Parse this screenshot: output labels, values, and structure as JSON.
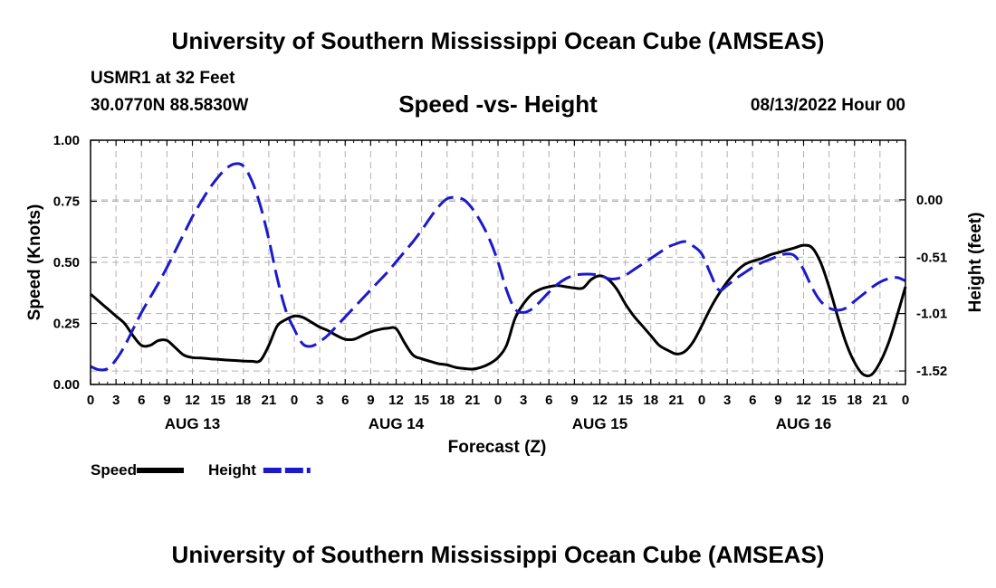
{
  "header": {
    "title": "University of Southern Mississippi Ocean Cube (AMSEAS)",
    "station": "USMR1 at 32 Feet",
    "coordinates": "30.0770N  88.5830W",
    "subtitle": "Speed -vs- Height",
    "date_hour": "08/13/2022 Hour 00"
  },
  "footer": {
    "title": "University of Southern Mississippi Ocean Cube (AMSEAS)"
  },
  "chart_data": {
    "type": "line",
    "title": "Speed -vs- Height",
    "xlabel": "Forecast (Z)",
    "ylabel": "Speed (Knots)",
    "y2label": "Height (feet)",
    "x_unit": "hours since 08/13/2022 00Z",
    "xlim": [
      0,
      96
    ],
    "ylim": [
      0,
      1
    ],
    "y2lim": [
      -1.64,
      0.53
    ],
    "x_ticks": [
      0,
      3,
      6,
      9,
      12,
      15,
      18,
      21,
      24,
      27,
      30,
      33,
      36,
      39,
      42,
      45,
      48,
      51,
      54,
      57,
      60,
      63,
      66,
      69,
      72,
      75,
      78,
      81,
      84,
      87,
      90,
      93,
      96
    ],
    "x_tick_labels": [
      "0",
      "3",
      "6",
      "9",
      "12",
      "15",
      "18",
      "21",
      "0",
      "3",
      "6",
      "9",
      "12",
      "15",
      "18",
      "21",
      "0",
      "3",
      "6",
      "9",
      "12",
      "15",
      "18",
      "21",
      "0",
      "3",
      "6",
      "9",
      "12",
      "15",
      "18",
      "21",
      "0"
    ],
    "day_labels": [
      {
        "x": 12,
        "label": "AUG 13"
      },
      {
        "x": 36,
        "label": "AUG 14"
      },
      {
        "x": 60,
        "label": "AUG 15"
      },
      {
        "x": 84,
        "label": "AUG 16"
      }
    ],
    "y_ticks": [
      0,
      0.25,
      0.5,
      0.75,
      1.0
    ],
    "y_tick_labels": [
      "0.00",
      "0.25",
      "0.50",
      "0.75",
      "1.00"
    ],
    "y2_ticks": [
      0,
      -0.51,
      -1.01,
      -1.52
    ],
    "y2_tick_labels": [
      "0.00",
      "-0.51",
      "-1.01",
      "-1.52"
    ],
    "grid": true,
    "legend": [
      {
        "label": "Speed",
        "color": "#000000",
        "dash": "solid"
      },
      {
        "label": "Height",
        "color": "#1a1acc",
        "dash": "dashed"
      }
    ],
    "series": [
      {
        "name": "Speed",
        "axis": "left",
        "color": "#000000",
        "x": [
          0,
          1,
          2,
          3,
          4,
          5,
          6,
          7,
          8,
          9,
          10,
          11,
          12,
          13,
          14,
          15,
          16,
          17,
          18,
          19,
          20,
          21,
          22,
          23,
          24,
          25,
          26,
          27,
          28,
          29,
          30,
          31,
          32,
          33,
          34,
          35,
          36,
          37,
          38,
          39,
          40,
          41,
          42,
          43,
          44,
          45,
          46,
          47,
          48,
          49,
          50,
          51,
          52,
          53,
          54,
          55,
          56,
          57,
          58,
          59,
          60,
          61,
          62,
          63,
          64,
          65,
          66,
          67,
          68,
          69,
          70,
          71,
          72,
          73,
          74,
          75,
          76,
          77,
          78,
          79,
          80,
          81,
          82,
          83,
          84,
          85,
          86,
          87,
          88,
          89,
          90,
          91,
          92,
          93,
          94,
          95,
          96
        ],
        "values": [
          0.37,
          0.34,
          0.31,
          0.28,
          0.25,
          0.2,
          0.16,
          0.16,
          0.18,
          0.18,
          0.15,
          0.12,
          0.11,
          0.108,
          0.105,
          0.103,
          0.1,
          0.098,
          0.096,
          0.095,
          0.098,
          0.16,
          0.24,
          0.265,
          0.28,
          0.275,
          0.255,
          0.235,
          0.22,
          0.2,
          0.185,
          0.185,
          0.2,
          0.215,
          0.225,
          0.23,
          0.228,
          0.17,
          0.12,
          0.105,
          0.095,
          0.085,
          0.08,
          0.07,
          0.065,
          0.063,
          0.07,
          0.085,
          0.11,
          0.16,
          0.27,
          0.33,
          0.37,
          0.39,
          0.4,
          0.405,
          0.4,
          0.395,
          0.395,
          0.43,
          0.445,
          0.43,
          0.39,
          0.33,
          0.28,
          0.24,
          0.2,
          0.16,
          0.14,
          0.125,
          0.135,
          0.175,
          0.24,
          0.31,
          0.37,
          0.42,
          0.46,
          0.49,
          0.505,
          0.515,
          0.53,
          0.54,
          0.55,
          0.56,
          0.57,
          0.56,
          0.5,
          0.4,
          0.28,
          0.17,
          0.09,
          0.042,
          0.04,
          0.09,
          0.17,
          0.28,
          0.4
        ]
      },
      {
        "name": "Height",
        "axis": "right",
        "color": "#1a1acc",
        "x": [
          0,
          1,
          2,
          3,
          4,
          5,
          6,
          7,
          8,
          9,
          10,
          11,
          12,
          13,
          14,
          15,
          16,
          17,
          18,
          19,
          20,
          21,
          22,
          23,
          24,
          25,
          26,
          27,
          28,
          29,
          30,
          31,
          32,
          33,
          34,
          35,
          36,
          37,
          38,
          39,
          40,
          41,
          42,
          43,
          44,
          45,
          46,
          47,
          48,
          49,
          50,
          51,
          52,
          53,
          54,
          55,
          56,
          57,
          58,
          59,
          60,
          61,
          62,
          63,
          64,
          65,
          66,
          67,
          68,
          69,
          70,
          71,
          72,
          73,
          74,
          75,
          76,
          77,
          78,
          79,
          80,
          81,
          82,
          83,
          84,
          85,
          86,
          87,
          88,
          89,
          90,
          91,
          92,
          93,
          94,
          95,
          96
        ],
        "values": [
          -1.48,
          -1.51,
          -1.5,
          -1.42,
          -1.3,
          -1.15,
          -1.0,
          -0.87,
          -0.74,
          -0.6,
          -0.45,
          -0.3,
          -0.15,
          -0.02,
          0.1,
          0.2,
          0.28,
          0.32,
          0.3,
          0.17,
          -0.05,
          -0.35,
          -0.7,
          -0.98,
          -1.15,
          -1.28,
          -1.3,
          -1.26,
          -1.2,
          -1.12,
          -1.04,
          -0.96,
          -0.88,
          -0.8,
          -0.72,
          -0.64,
          -0.55,
          -0.46,
          -0.37,
          -0.27,
          -0.16,
          -0.06,
          0.01,
          0.02,
          0.0,
          -0.08,
          -0.2,
          -0.35,
          -0.55,
          -0.8,
          -0.97,
          -1.0,
          -0.97,
          -0.9,
          -0.82,
          -0.75,
          -0.7,
          -0.67,
          -0.66,
          -0.66,
          -0.67,
          -0.7,
          -0.7,
          -0.67,
          -0.62,
          -0.57,
          -0.52,
          -0.47,
          -0.42,
          -0.39,
          -0.37,
          -0.41,
          -0.48,
          -0.65,
          -0.8,
          -0.76,
          -0.7,
          -0.65,
          -0.6,
          -0.56,
          -0.53,
          -0.5,
          -0.48,
          -0.5,
          -0.62,
          -0.78,
          -0.9,
          -0.96,
          -0.98,
          -0.96,
          -0.9,
          -0.84,
          -0.78,
          -0.73,
          -0.7,
          -0.69,
          -0.72
        ]
      }
    ]
  }
}
